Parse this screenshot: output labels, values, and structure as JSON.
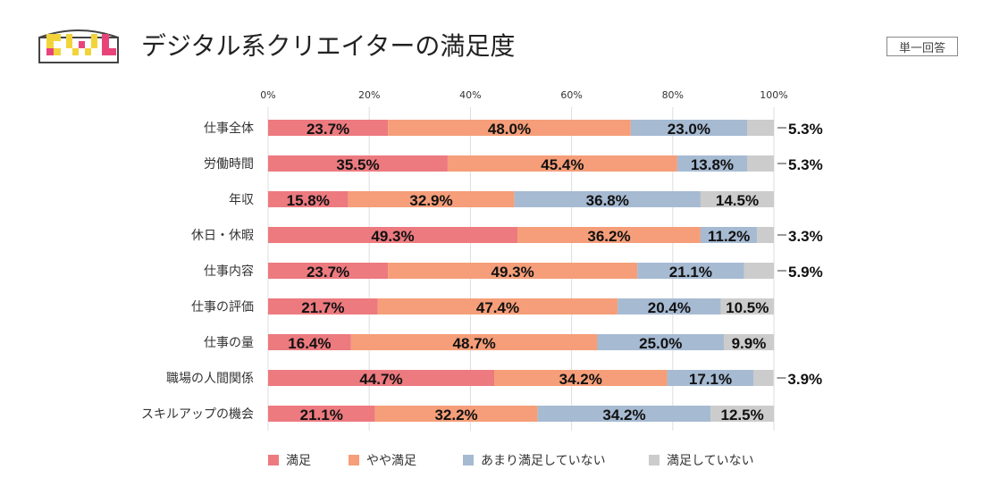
{
  "header": {
    "title": "デジタル系クリエイターの満足度",
    "badge": "単一回答",
    "logo_text": "CWL"
  },
  "colors": {
    "satisfied": "#ec7a7f",
    "somewhat_satisfied": "#f59e79",
    "not_very_satisfied": "#a6bad2",
    "not_satisfied": "#cccccc",
    "logo_yellow": "#f2d43a",
    "logo_pink": "#e8447a",
    "logo_dark": "#444444"
  },
  "chart_data": {
    "type": "bar",
    "orientation": "horizontal",
    "stacked": "percent",
    "x_ticks": [
      "0%",
      "20%",
      "40%",
      "60%",
      "80%",
      "100%"
    ],
    "xlim": [
      0,
      100
    ],
    "grid": true,
    "legend_position": "bottom",
    "categories": [
      "仕事全体",
      "労働時間",
      "年収",
      "休日・休暇",
      "仕事内容",
      "仕事の評価",
      "仕事の量",
      "職場の人間関係",
      "スキルアップの機会"
    ],
    "series": [
      {
        "name": "満足",
        "values": [
          23.7,
          35.5,
          15.8,
          49.3,
          23.7,
          21.7,
          16.4,
          44.7,
          21.1
        ],
        "labels": [
          "23.7%",
          "35.5%",
          "15.8%",
          "49.3%",
          "23.7%",
          "21.7%",
          "16.4%",
          "44.7%",
          "21.1%"
        ]
      },
      {
        "name": "やや満足",
        "values": [
          48.0,
          45.4,
          32.9,
          36.2,
          49.3,
          47.4,
          48.7,
          34.2,
          32.2
        ],
        "labels": [
          "48.0%",
          "45.4%",
          "32.9%",
          "36.2%",
          "49.3%",
          "47.4%",
          "48.7%",
          "34.2%",
          "32.2%"
        ]
      },
      {
        "name": "あまり満足していない",
        "values": [
          23.0,
          13.8,
          36.8,
          11.2,
          21.1,
          20.4,
          25.0,
          17.1,
          34.2
        ],
        "labels": [
          "23.0%",
          "13.8%",
          "36.8%",
          "11.2%",
          "21.1%",
          "20.4%",
          "25.0%",
          "17.1%",
          "34.2%"
        ]
      },
      {
        "name": "満足していない",
        "values": [
          5.3,
          5.3,
          14.5,
          3.3,
          5.9,
          10.5,
          9.9,
          3.9,
          12.5
        ],
        "labels": [
          "5.3%",
          "5.3%",
          "14.5%",
          "3.3%",
          "5.9%",
          "10.5%",
          "9.9%",
          "3.9%",
          "12.5%"
        ]
      }
    ]
  }
}
